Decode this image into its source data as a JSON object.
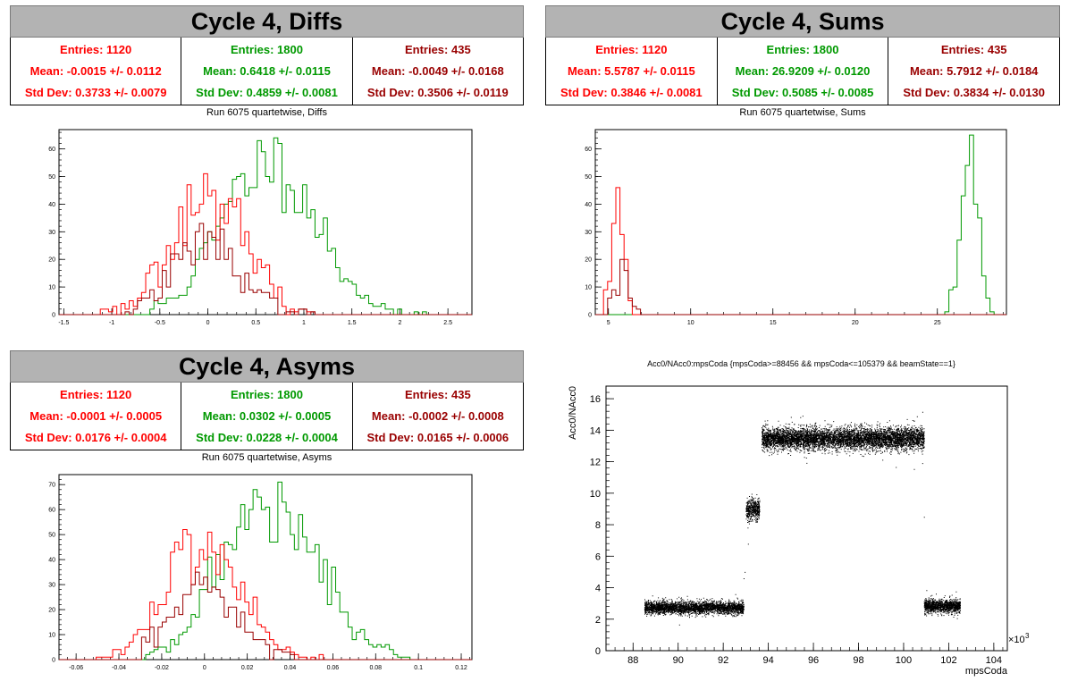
{
  "colors": {
    "red": "#ff0000",
    "green": "#009900",
    "dark": "#990000"
  },
  "panels": {
    "diffs": {
      "banner": "Cycle 4, Diffs",
      "stats": [
        {
          "entries": "Entries: 1120",
          "mean": "Mean: -0.0015 +/- 0.0112",
          "std": "Std Dev: 0.3733 +/- 0.0079"
        },
        {
          "entries": "Entries: 1800",
          "mean": "Mean: 0.6418 +/- 0.0115",
          "std": "Std Dev: 0.4859 +/- 0.0081"
        },
        {
          "entries": "Entries: 435",
          "mean": "Mean: -0.0049 +/- 0.0168",
          "std": "Std Dev: 0.3506 +/- 0.0119"
        }
      ],
      "title": "Run 6075 quartetwise, Diffs"
    },
    "sums": {
      "banner": "Cycle 4, Sums",
      "stats": [
        {
          "entries": "Entries: 1120",
          "mean": "Mean: 5.5787 +/- 0.0115",
          "std": "Std Dev: 0.3846 +/- 0.0081"
        },
        {
          "entries": "Entries: 1800",
          "mean": "Mean: 26.9209 +/- 0.0120",
          "std": "Std Dev: 0.5085 +/- 0.0085"
        },
        {
          "entries": "Entries: 435",
          "mean": "Mean: 5.7912 +/- 0.0184",
          "std": "Std Dev: 0.3834 +/- 0.0130"
        }
      ],
      "title": "Run 6075 quartetwise, Sums"
    },
    "asyms": {
      "banner": "Cycle 4, Asyms",
      "stats": [
        {
          "entries": "Entries: 1120",
          "mean": "Mean: -0.0001 +/- 0.0005",
          "std": "Std Dev: 0.0176 +/- 0.0004"
        },
        {
          "entries": "Entries: 1800",
          "mean": "Mean: 0.0302 +/- 0.0005",
          "std": "Std Dev: 0.0228 +/- 0.0004"
        },
        {
          "entries": "Entries: 435",
          "mean": "Mean: -0.0002 +/- 0.0008",
          "std": "Std Dev: 0.0165 +/- 0.0006"
        }
      ],
      "title": "Run 6075 quartetwise, Asyms"
    }
  },
  "chart_data": [
    {
      "type": "histogram",
      "title": "Run 6075 quartetwise, Diffs",
      "xlim": [
        -1.55,
        2.75
      ],
      "ylim": [
        0,
        67
      ],
      "xticks": [
        -1.5,
        -1,
        -0.5,
        0,
        0.5,
        1,
        1.5,
        2,
        2.5
      ],
      "xtick_labels": [
        "-1.5",
        "-1",
        "-0.5",
        "0",
        "0.5",
        "1",
        "1.5",
        "2",
        "2.5"
      ],
      "yticks": [
        0,
        10,
        20,
        30,
        40,
        50,
        60
      ],
      "series": [
        {
          "color": "#009900",
          "entries": 1800,
          "mean": 0.6418,
          "std": 0.4859,
          "peak": 64,
          "xmin": -0.6,
          "xmax": 2.5,
          "seed": 11
        },
        {
          "color": "#ff0000",
          "entries": 1120,
          "mean": -0.0015,
          "std": 0.3733,
          "peak": 51,
          "xmin": -1.2,
          "xmax": 1.3,
          "seed": 23
        },
        {
          "color": "#990000",
          "entries": 435,
          "mean": -0.0049,
          "std": 0.3506,
          "peak": 30,
          "xmin": -0.9,
          "xmax": 1.1,
          "seed": 37
        }
      ]
    },
    {
      "type": "histogram",
      "title": "Run 6075 quartetwise, Sums",
      "xlim": [
        4.2,
        29.2
      ],
      "ylim": [
        0,
        67
      ],
      "xticks": [
        5,
        10,
        15,
        20,
        25
      ],
      "xtick_labels": [
        "5",
        "10",
        "15",
        "20",
        "25"
      ],
      "yticks": [
        0,
        10,
        20,
        30,
        40,
        50,
        60
      ],
      "series": [
        {
          "color": "#009900",
          "entries": 1800,
          "mean": 26.9209,
          "std": 0.5085,
          "peak": 65,
          "xmin": 25.2,
          "xmax": 28.8,
          "seed": 41
        },
        {
          "color": "#ff0000",
          "entries": 1120,
          "mean": 5.5787,
          "std": 0.3846,
          "peak": 46,
          "xmin": 4.6,
          "xmax": 6.8,
          "seed": 53
        },
        {
          "color": "#990000",
          "entries": 435,
          "mean": 5.7912,
          "std": 0.3834,
          "peak": 20,
          "xmin": 4.8,
          "xmax": 6.9,
          "seed": 67
        }
      ]
    },
    {
      "type": "histogram",
      "title": "Run 6075 quartetwise, Asyms",
      "xlim": [
        -0.068,
        0.125
      ],
      "ylim": [
        0,
        74
      ],
      "xticks": [
        -0.06,
        -0.04,
        -0.02,
        0,
        0.02,
        0.04,
        0.06,
        0.08,
        0.1,
        0.12
      ],
      "xtick_labels": [
        "-0.06",
        "-0.04",
        "-0.02",
        "0",
        "0.02",
        "0.04",
        "0.06",
        "0.08",
        "0.1",
        "0.12"
      ],
      "yticks": [
        0,
        10,
        20,
        30,
        40,
        50,
        60,
        70
      ],
      "series": [
        {
          "color": "#009900",
          "entries": 1800,
          "mean": 0.0302,
          "std": 0.0228,
          "peak": 71,
          "xmin": -0.028,
          "xmax": 0.1,
          "seed": 71
        },
        {
          "color": "#ff0000",
          "entries": 1120,
          "mean": -0.0001,
          "std": 0.0176,
          "peak": 50,
          "xmin": -0.05,
          "xmax": 0.055,
          "seed": 83
        },
        {
          "color": "#990000",
          "entries": 435,
          "mean": -0.0002,
          "std": 0.0165,
          "peak": 30,
          "xmin": -0.03,
          "xmax": 0.05,
          "seed": 97
        }
      ]
    },
    {
      "type": "scatter",
      "title": "Acc0/NAcc0:mpsCoda {mpsCoda>=88456 && mpsCoda<=105379 && beamState==1}",
      "xlabel": "mpsCoda",
      "ylabel": "Acc0/NAcc0",
      "x_multiplier": "×10",
      "x_multiplier_exp": "3",
      "xlim": [
        86.8,
        104.6
      ],
      "ylim": [
        0,
        16.8
      ],
      "xticks": [
        88,
        90,
        92,
        94,
        96,
        98,
        100,
        102,
        104
      ],
      "xtick_labels": [
        "88",
        "90",
        "92",
        "94",
        "96",
        "98",
        "100",
        "102",
        "104"
      ],
      "yticks": [
        0,
        2,
        4,
        6,
        8,
        10,
        12,
        14,
        16
      ],
      "ytick_labels": [
        "0",
        "2",
        "4",
        "6",
        "8",
        "10",
        "12",
        "14",
        "16"
      ],
      "clusters": [
        {
          "x": [
            88.5,
            92.9
          ],
          "y_center": 2.75,
          "y_spread": 0.32,
          "count": 3200
        },
        {
          "x": [
            93.0,
            93.6
          ],
          "y_center": 9.0,
          "y_spread": 0.55,
          "count": 500
        },
        {
          "x": [
            93.7,
            100.9
          ],
          "y_center": 13.5,
          "y_spread": 0.55,
          "count": 6500
        },
        {
          "x": [
            100.9,
            102.5
          ],
          "y_center": 2.85,
          "y_spread": 0.35,
          "count": 1300
        }
      ],
      "outliers": [
        [
          92.95,
          5.0
        ],
        [
          92.9,
          4.6
        ],
        [
          100.9,
          8.5
        ]
      ]
    }
  ]
}
